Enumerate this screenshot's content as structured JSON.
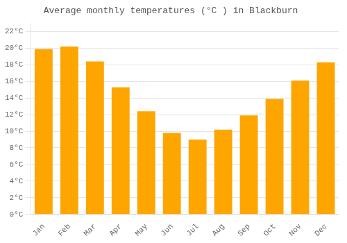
{
  "chart_data": {
    "type": "bar",
    "title": "Average monthly temperatures (°C ) in Blackburn",
    "categories": [
      "Jan",
      "Feb",
      "Mar",
      "Apr",
      "May",
      "Jun",
      "Jul",
      "Aug",
      "Sep",
      "Oct",
      "Nov",
      "Dec"
    ],
    "values": [
      19.9,
      20.2,
      18.4,
      15.3,
      12.4,
      9.8,
      9.0,
      10.2,
      11.9,
      13.9,
      16.1,
      18.3
    ],
    "color": "#FFA500",
    "ylim": [
      0,
      23
    ],
    "yticks": [
      {
        "value": 0,
        "label": "0°C"
      },
      {
        "value": 2,
        "label": "2°C"
      },
      {
        "value": 4,
        "label": "4°C"
      },
      {
        "value": 6,
        "label": "6°C"
      },
      {
        "value": 8,
        "label": "8°C"
      },
      {
        "value": 10,
        "label": "10°C"
      },
      {
        "value": 12,
        "label": "12°C"
      },
      {
        "value": 14,
        "label": "14°C"
      },
      {
        "value": 16,
        "label": "16°C"
      },
      {
        "value": 18,
        "label": "18°C"
      },
      {
        "value": 20,
        "label": "20°C"
      },
      {
        "value": 22,
        "label": "22°C"
      }
    ],
    "grid": true
  }
}
